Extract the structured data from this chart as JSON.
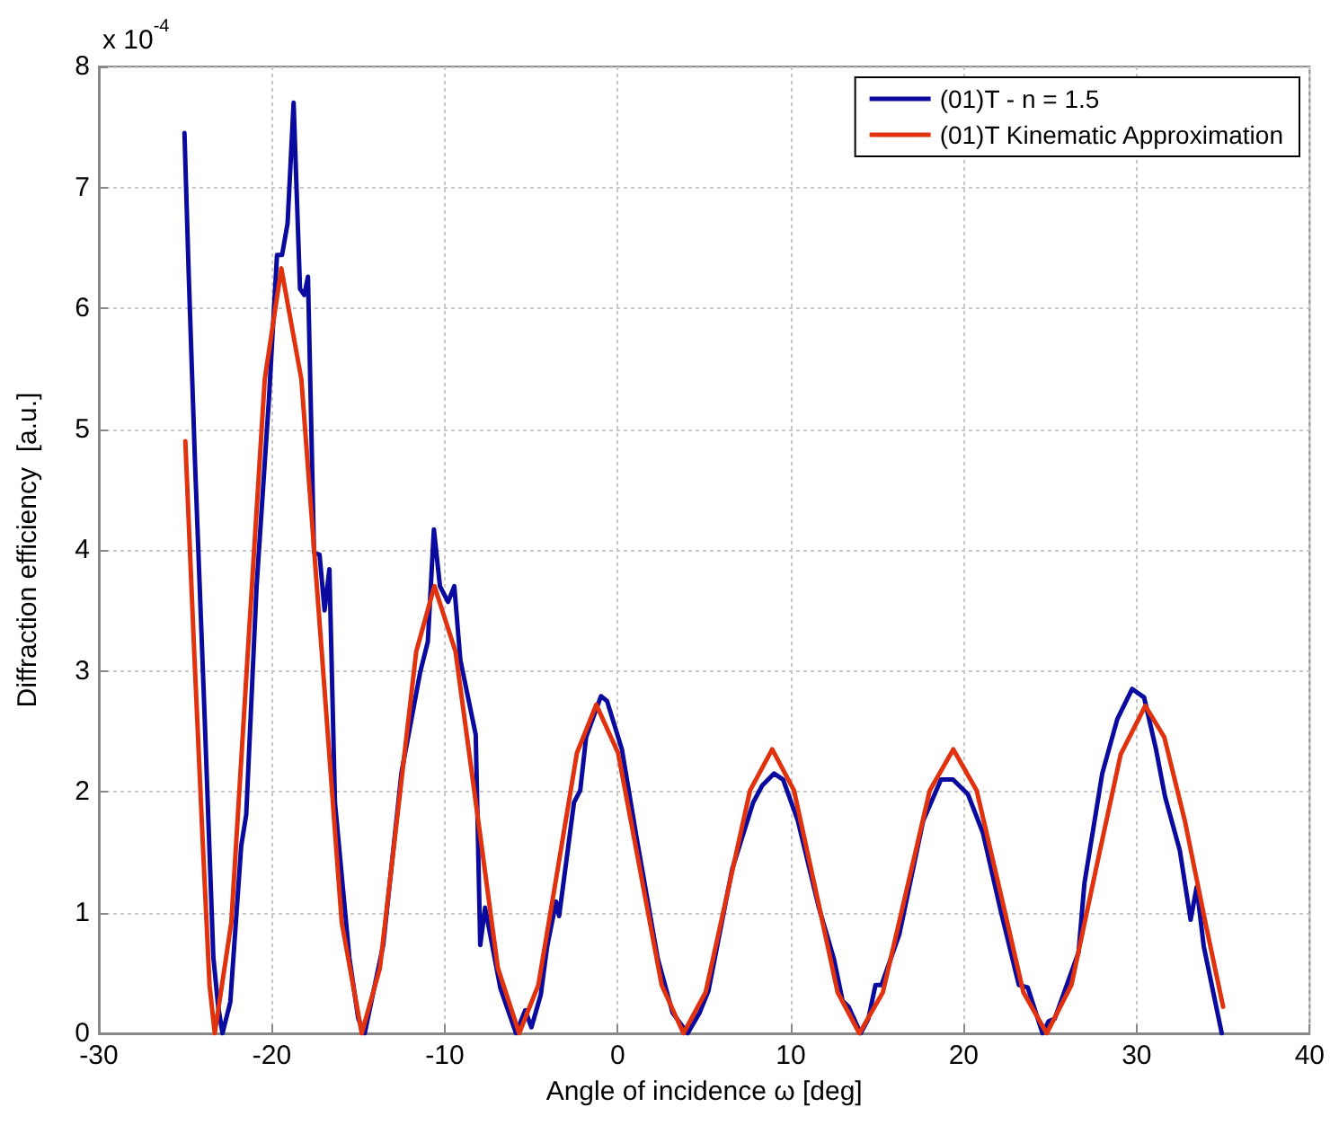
{
  "chart_data": {
    "type": "line",
    "xlabel": "Angle of incidence ω [deg]",
    "ylabel": "Diffraction efficiency  [a.u.]",
    "annotations": [
      "x 10$^{-4}$"
    ],
    "xlim": [
      -30,
      40
    ],
    "xticks": [
      -30,
      -20,
      -10,
      0,
      10,
      20,
      30,
      40
    ],
    "ylim": [
      0,
      8
    ],
    "yticks": [
      0,
      1,
      2,
      3,
      4,
      5,
      6,
      7,
      8
    ],
    "grid": true,
    "legend": "top right",
    "marker": "none",
    "line_style": "solid",
    "series": [
      {
        "name": "(01)T - n = 1.5",
        "color": "#0a0a9e",
        "x": [
          -25.05,
          -24.8,
          -24.44,
          -23.9,
          -23.38,
          -23.1,
          -22.85,
          -22.4,
          -21.77,
          -21.48,
          -20.88,
          -20.17,
          -19.7,
          -19.41,
          -19.09,
          -18.74,
          -18.37,
          -18.12,
          -17.91,
          -17.56,
          -17.24,
          -16.95,
          -16.67,
          -16.35,
          -15.52,
          -15.0,
          -14.63,
          -13.56,
          -12.5,
          -11.42,
          -10.98,
          -10.63,
          -10.28,
          -9.81,
          -9.45,
          -9.1,
          -8.21,
          -7.95,
          -7.67,
          -6.78,
          -5.88,
          -5.35,
          -4.99,
          -4.45,
          -4.08,
          -3.56,
          -3.39,
          -2.53,
          -2.17,
          -1.83,
          -0.97,
          -0.62,
          0.24,
          1.1,
          2.31,
          3.17,
          4.04,
          4.73,
          5.24,
          6.62,
          7.83,
          8.35,
          9.04,
          9.56,
          10.41,
          11.63,
          12.49,
          13.0,
          13.35,
          14.04,
          14.49,
          14.9,
          15.25,
          16.28,
          17.66,
          18.69,
          19.38,
          20.24,
          21.11,
          22.15,
          23.19,
          23.7,
          24.56,
          24.91,
          25.26,
          26.64,
          26.98,
          28.01,
          28.88,
          29.74,
          30.43,
          31.12,
          31.64,
          32.5,
          33.12,
          33.47,
          33.88,
          34.92
        ],
        "values": [
          7.45,
          6.26,
          4.72,
          2.68,
          0.63,
          0.22,
          0,
          0.26,
          1.55,
          1.81,
          3.7,
          5.24,
          6.44,
          6.44,
          6.7,
          7.7,
          6.16,
          6.11,
          6.26,
          3.98,
          3.96,
          3.5,
          3.84,
          1.91,
          0.63,
          0.12,
          0,
          0.73,
          2.16,
          2.99,
          3.24,
          4.17,
          3.7,
          3.57,
          3.7,
          3.09,
          2.47,
          0.73,
          1.04,
          0.37,
          0,
          0.19,
          0.05,
          0.32,
          0.72,
          1.09,
          0.97,
          1.91,
          2.01,
          2.45,
          2.79,
          2.75,
          2.35,
          1.61,
          0.62,
          0.17,
          0,
          0.17,
          0.35,
          1.36,
          1.91,
          2.05,
          2.15,
          2.1,
          1.76,
          1.04,
          0.62,
          0.27,
          0.22,
          0,
          0.12,
          0.4,
          0.4,
          0.82,
          1.76,
          2.1,
          2.1,
          1.98,
          1.66,
          1.01,
          0.4,
          0.38,
          0,
          0.1,
          0.12,
          0.67,
          1.24,
          2.15,
          2.6,
          2.85,
          2.78,
          2.35,
          1.96,
          1.51,
          0.94,
          1.21,
          0.72,
          0
        ]
      },
      {
        "name": "(01)T Kinematic Approximation",
        "color": "#e0320f",
        "x": [
          -25,
          -24.5,
          -24,
          -23.6,
          -23.3,
          -22.34,
          -21.38,
          -20.41,
          -19.45,
          -18.29,
          -17.12,
          -15.96,
          -14.8,
          -13.75,
          -12.7,
          -11.65,
          -10.6,
          -9.38,
          -8.15,
          -6.93,
          -5.7,
          -4.59,
          -3.47,
          -2.36,
          -1.24,
          0.02,
          1.28,
          2.54,
          3.8,
          5.08,
          6.37,
          7.65,
          8.93,
          10.19,
          11.45,
          12.71,
          13.97,
          15.33,
          16.69,
          18.04,
          19.4,
          20.75,
          22.1,
          23.45,
          24.8,
          26.23,
          27.65,
          29.08,
          30.5,
          31.6,
          32.8,
          34,
          35
        ],
        "values": [
          4.9,
          3.2,
          1.6,
          0.4,
          0,
          0.92,
          3.17,
          5.41,
          6.33,
          5.41,
          3.17,
          0.92,
          0,
          0.54,
          1.85,
          3.16,
          3.7,
          3.16,
          1.85,
          0.54,
          0,
          0.4,
          1.36,
          2.32,
          2.72,
          2.32,
          1.36,
          0.4,
          0,
          0.34,
          1.18,
          2.01,
          2.35,
          2.01,
          1.18,
          0.34,
          0,
          0.34,
          1.18,
          2.01,
          2.35,
          2.01,
          1.18,
          0.34,
          0,
          0.4,
          1.36,
          2.31,
          2.71,
          2.45,
          1.75,
          0.9,
          0.22
        ]
      }
    ]
  }
}
